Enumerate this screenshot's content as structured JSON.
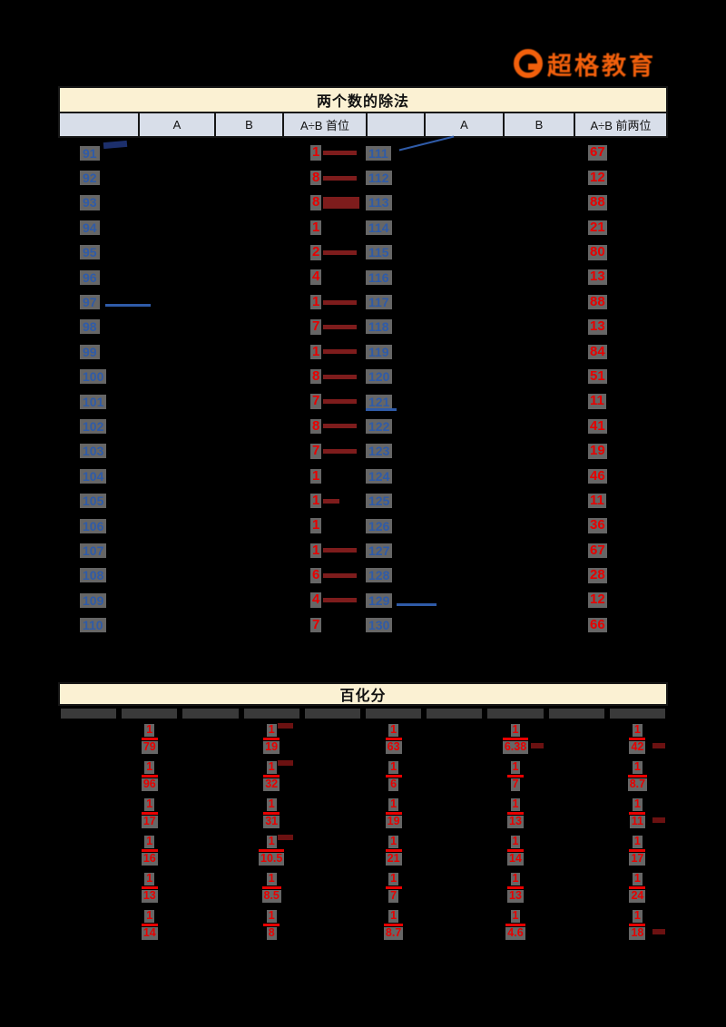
{
  "logo": {
    "icon": "G",
    "text": "超格教育",
    "color": "#F2600C"
  },
  "colors": {
    "background": "#000000",
    "title_fill": "#FBF1D3",
    "header_fill": "#D8DEE9",
    "index_blue": "#2F5BA8",
    "answer_red": "#E80000",
    "pen_dark_red": "#7E1C1C",
    "text_halo_gray": "#666666"
  },
  "division_table": {
    "title": "两个数的除法",
    "headers": [
      "",
      "A",
      "B",
      "A÷B 首位",
      "",
      "A",
      "B",
      "A÷B 前两位"
    ],
    "left_rows": [
      {
        "num": "91",
        "ans": "1",
        "bar": "line",
        "mark": "smudge-above"
      },
      {
        "num": "92",
        "ans": "8",
        "bar": "line"
      },
      {
        "num": "93",
        "ans": "8",
        "bar": "box"
      },
      {
        "num": "94",
        "ans": "1",
        "bar": "none"
      },
      {
        "num": "95",
        "ans": "2",
        "bar": "line"
      },
      {
        "num": "96",
        "ans": "4",
        "bar": "none"
      },
      {
        "num": "97",
        "ans": "1",
        "bar": "line",
        "mark": "line-after"
      },
      {
        "num": "98",
        "ans": "7",
        "bar": "line"
      },
      {
        "num": "99",
        "ans": "1",
        "bar": "line"
      },
      {
        "num": "100",
        "ans": "8",
        "bar": "line"
      },
      {
        "num": "101",
        "ans": "7",
        "bar": "line"
      },
      {
        "num": "102",
        "ans": "8",
        "bar": "line"
      },
      {
        "num": "103",
        "ans": "7",
        "bar": "line"
      },
      {
        "num": "104",
        "ans": "1",
        "bar": "none"
      },
      {
        "num": "105",
        "ans": "1",
        "bar": "short"
      },
      {
        "num": "106",
        "ans": "1",
        "bar": "none"
      },
      {
        "num": "107",
        "ans": "1",
        "bar": "line"
      },
      {
        "num": "108",
        "ans": "6",
        "bar": "line"
      },
      {
        "num": "109",
        "ans": "4",
        "bar": "line"
      },
      {
        "num": "110",
        "ans": "7",
        "bar": "none"
      }
    ],
    "right_rows": [
      {
        "num": "111",
        "ans": "67",
        "mark": "diag-above"
      },
      {
        "num": "112",
        "ans": "12"
      },
      {
        "num": "113",
        "ans": "88"
      },
      {
        "num": "114",
        "ans": "21"
      },
      {
        "num": "115",
        "ans": "80"
      },
      {
        "num": "116",
        "ans": "13"
      },
      {
        "num": "117",
        "ans": "88"
      },
      {
        "num": "118",
        "ans": "13"
      },
      {
        "num": "119",
        "ans": "84"
      },
      {
        "num": "120",
        "ans": "51"
      },
      {
        "num": "121",
        "ans": "11",
        "mark": "underline"
      },
      {
        "num": "122",
        "ans": "41"
      },
      {
        "num": "123",
        "ans": "19"
      },
      {
        "num": "124",
        "ans": "46"
      },
      {
        "num": "125",
        "ans": "11"
      },
      {
        "num": "126",
        "ans": "36"
      },
      {
        "num": "127",
        "ans": "67"
      },
      {
        "num": "128",
        "ans": "28"
      },
      {
        "num": "129",
        "ans": "12",
        "mark": "line-right"
      },
      {
        "num": "130",
        "ans": "66"
      }
    ]
  },
  "percent_table": {
    "title": "百化分",
    "question_cells": 10,
    "rows": [
      [
        {
          "n": "1",
          "d": "79"
        },
        {
          "n": "1",
          "d": "19",
          "smudge": "tr"
        },
        {
          "n": "1",
          "d": "63"
        },
        {
          "n": "1",
          "d": "6.38",
          "smudge": "r"
        },
        {
          "n": "1",
          "d": "42",
          "smudge": "r"
        }
      ],
      [
        {
          "n": "1",
          "d": "96"
        },
        {
          "n": "1",
          "d": "32",
          "smudge": "tr"
        },
        {
          "n": "1",
          "d": "6"
        },
        {
          "n": "1",
          "d": "7"
        },
        {
          "n": "1",
          "d": "8.7"
        }
      ],
      [
        {
          "n": "1",
          "d": "17"
        },
        {
          "n": "1",
          "d": "31"
        },
        {
          "n": "1",
          "d": "19"
        },
        {
          "n": "1",
          "d": "13"
        },
        {
          "n": "1",
          "d": "11",
          "smudge": "r"
        }
      ],
      [
        {
          "n": "1",
          "d": "16"
        },
        {
          "n": "1",
          "d": "10.5",
          "smudge": "tr"
        },
        {
          "n": "1",
          "d": "21"
        },
        {
          "n": "1",
          "d": "14"
        },
        {
          "n": "1",
          "d": "17"
        }
      ],
      [
        {
          "n": "1",
          "d": "13"
        },
        {
          "n": "1",
          "d": "8.5"
        },
        {
          "n": "1",
          "d": "7"
        },
        {
          "n": "1",
          "d": "13"
        },
        {
          "n": "1",
          "d": "24"
        }
      ],
      [
        {
          "n": "1",
          "d": "14"
        },
        {
          "n": "1",
          "d": "8"
        },
        {
          "n": "1",
          "d": "8.7"
        },
        {
          "n": "1",
          "d": "4.6"
        },
        {
          "n": "1",
          "d": "18",
          "smudge": "r"
        }
      ]
    ]
  }
}
